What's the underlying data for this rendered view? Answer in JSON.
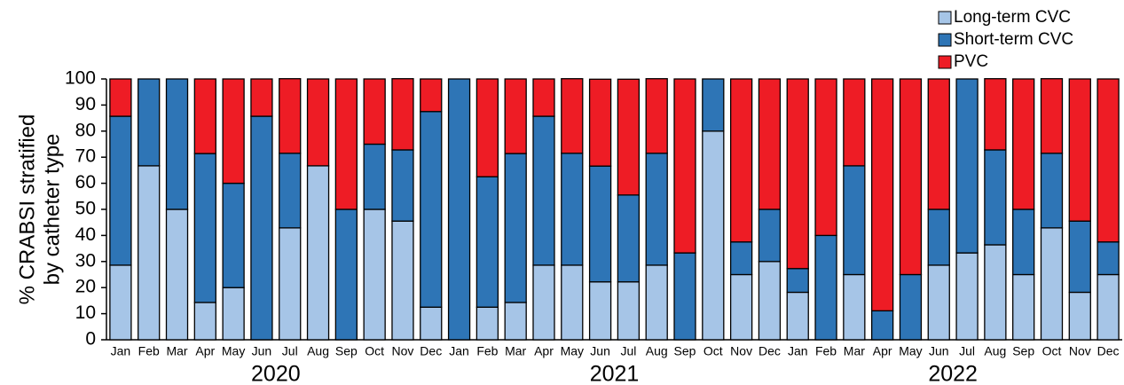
{
  "chart_data": {
    "type": "stacked_bar",
    "ylabel": [
      "% CRABSI stratified",
      "by catheter type"
    ],
    "categories": [
      "Jan",
      "Feb",
      "Mar",
      "Apr",
      "May",
      "Jun",
      "Jul",
      "Aug",
      "Sep",
      "Oct",
      "Nov",
      "Dec",
      "Jan",
      "Feb",
      "Mar",
      "Apr",
      "May",
      "Jun",
      "Jul",
      "Aug",
      "Sep",
      "Oct",
      "Nov",
      "Dec",
      "Jan",
      "Feb",
      "Mar",
      "Apr",
      "May",
      "Jun",
      "Jul",
      "Aug",
      "Sep",
      "Oct",
      "Nov",
      "Dec"
    ],
    "groups": [
      "2020",
      "2021",
      "2022"
    ],
    "series": [
      {
        "name": "Long-term CVC",
        "color": "#a6c5e7",
        "values": [
          28.6,
          66.7,
          50,
          14.3,
          20,
          0,
          42.9,
          66.7,
          0,
          50,
          45.5,
          12.5,
          0,
          12.5,
          14.3,
          28.6,
          28.6,
          22.2,
          22.2,
          28.6,
          0,
          80,
          25,
          30,
          18.2,
          0,
          25,
          0,
          0,
          28.6,
          33.3,
          36.4,
          25,
          42.9,
          18.2,
          25
        ]
      },
      {
        "name": "Short-term CVC",
        "color": "#2e75b6",
        "values": [
          57.1,
          33.3,
          50,
          57.1,
          40,
          85.7,
          28.6,
          0,
          50,
          25,
          27.3,
          75,
          100,
          50,
          57.1,
          57.1,
          42.9,
          44.4,
          33.3,
          42.9,
          33.3,
          20,
          12.5,
          20,
          9.1,
          40,
          41.7,
          11.1,
          25,
          21.4,
          66.7,
          36.4,
          25,
          28.6,
          27.3,
          12.5
        ]
      },
      {
        "name": "PVC",
        "color": "#ee1c25",
        "values": [
          14.3,
          0,
          0,
          28.6,
          40,
          14.3,
          28.6,
          33.3,
          50,
          25,
          27.3,
          12.5,
          0,
          37.5,
          28.6,
          14.3,
          28.6,
          33.3,
          44.4,
          28.6,
          66.7,
          0,
          62.5,
          50,
          72.7,
          60,
          33.3,
          88.9,
          75,
          50,
          0,
          27.3,
          50,
          28.6,
          54.5,
          62.5
        ]
      }
    ],
    "ylim": [
      0,
      100
    ],
    "yticks": [
      0,
      10,
      20,
      30,
      40,
      50,
      60,
      70,
      80,
      90,
      100
    ],
    "legend": "top-right"
  }
}
